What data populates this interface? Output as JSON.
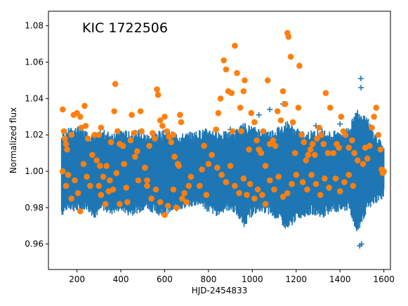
{
  "chart_data": {
    "type": "scatter",
    "title": "KIC 1722506",
    "xlabel": "HJD-2454833",
    "ylabel": "Normalized flux",
    "xlim": [
      70,
      1630
    ],
    "ylim": [
      0.946,
      1.088
    ],
    "xticks": [
      200,
      400,
      600,
      800,
      1000,
      1200,
      1400,
      1600
    ],
    "yticks": [
      0.96,
      0.98,
      1.0,
      1.02,
      1.04,
      1.06,
      1.08
    ],
    "xtick_labels": [
      "200",
      "400",
      "600",
      "800",
      "1000",
      "1200",
      "1400",
      "1600"
    ],
    "ytick_labels": [
      "0.96",
      "0.98",
      "1.00",
      "1.02",
      "1.04",
      "1.06",
      "1.08"
    ],
    "grid": false,
    "colors": {
      "observations": "#1f77b4",
      "flares": "#ff7f0e"
    },
    "series": [
      {
        "marker": "plus",
        "color": "#1f77b4",
        "band_x": [
          130,
          160,
          200,
          240,
          280,
          320,
          360,
          400,
          440,
          480,
          520,
          560,
          600,
          640,
          680,
          720,
          760,
          800,
          840,
          880,
          920,
          960,
          1000,
          1040,
          1080,
          1120,
          1160,
          1200,
          1240,
          1280,
          1320,
          1360,
          1400,
          1440,
          1480,
          1520,
          1560,
          1600
        ],
        "band_low": [
          0.978,
          0.982,
          0.98,
          0.982,
          0.977,
          0.981,
          0.979,
          0.981,
          0.978,
          0.98,
          0.982,
          0.979,
          0.978,
          0.98,
          0.982,
          0.983,
          0.984,
          0.98,
          0.978,
          0.981,
          0.98,
          0.972,
          0.978,
          0.981,
          0.978,
          0.976,
          0.969,
          0.976,
          0.978,
          0.979,
          0.977,
          0.98,
          0.98,
          0.981,
          0.968,
          0.98,
          0.985,
          0.988
        ],
        "band_high": [
          1.018,
          1.021,
          1.022,
          1.02,
          1.018,
          1.02,
          1.019,
          1.021,
          1.019,
          1.02,
          1.018,
          1.019,
          1.02,
          1.019,
          1.018,
          1.019,
          1.02,
          1.021,
          1.02,
          1.019,
          1.02,
          1.024,
          1.022,
          1.021,
          1.02,
          1.022,
          1.025,
          1.021,
          1.019,
          1.02,
          1.021,
          1.019,
          1.02,
          1.022,
          1.032,
          1.028,
          1.018,
          1.012
        ],
        "outliers": [
          [
            1495,
            1.051
          ],
          [
            1496,
            1.046
          ],
          [
            1490,
            0.959
          ],
          [
            1498,
            0.96
          ],
          [
            1030,
            1.031
          ],
          [
            1080,
            1.034
          ],
          [
            1140,
            1.037
          ],
          [
            1400,
            1.026
          ],
          [
            210,
            1.021
          ],
          [
            900,
            1.023
          ],
          [
            1290,
            1.025
          ],
          [
            1520,
            1.028
          ]
        ]
      },
      {
        "marker": "circle",
        "color": "#ff7f0e",
        "points": [
          [
            135,
            1.034
          ],
          [
            140,
            1.022
          ],
          [
            145,
            1.018
          ],
          [
            150,
            1.015
          ],
          [
            155,
            1.012
          ],
          [
            175,
            1.02
          ],
          [
            185,
            1.031
          ],
          [
            200,
            1.032
          ],
          [
            215,
            1.03
          ],
          [
            220,
            1.024
          ],
          [
            235,
            1.036
          ],
          [
            240,
            1.025
          ],
          [
            250,
            1.018
          ],
          [
            135,
            1.0
          ],
          [
            150,
            0.992
          ],
          [
            160,
            0.998
          ],
          [
            175,
            0.985
          ],
          [
            190,
            0.995
          ],
          [
            205,
            0.988
          ],
          [
            215,
            0.978
          ],
          [
            230,
            1.004
          ],
          [
            245,
            0.997
          ],
          [
            260,
            0.992
          ],
          [
            270,
            1.009
          ],
          [
            280,
            1.02
          ],
          [
            290,
            1.006
          ],
          [
            300,
            1.02
          ],
          [
            305,
            1.003
          ],
          [
            310,
            1.024
          ],
          [
            320,
            0.997
          ],
          [
            335,
            1.003
          ],
          [
            345,
            0.989
          ],
          [
            355,
            1.016
          ],
          [
            370,
            1.033
          ],
          [
            375,
            1.048
          ],
          [
            385,
            1.022
          ],
          [
            395,
            1.015
          ],
          [
            300,
            0.992
          ],
          [
            310,
            0.987
          ],
          [
            330,
            0.982
          ],
          [
            350,
            0.995
          ],
          [
            365,
            0.99
          ],
          [
            380,
            0.999
          ],
          [
            395,
            0.982
          ],
          [
            410,
            1.014
          ],
          [
            415,
            1.004
          ],
          [
            425,
            0.991
          ],
          [
            430,
            0.983
          ],
          [
            445,
            1.017
          ],
          [
            450,
            1.031
          ],
          [
            460,
            1.021
          ],
          [
            465,
            1.008
          ],
          [
            475,
            1.011
          ],
          [
            480,
            0.995
          ],
          [
            490,
            1.033
          ],
          [
            495,
            1.022
          ],
          [
            510,
            1.002
          ],
          [
            520,
            0.995
          ],
          [
            530,
            1.014
          ],
          [
            545,
            1.021
          ],
          [
            555,
            1.018
          ],
          [
            565,
            1.045
          ],
          [
            570,
            1.042
          ],
          [
            580,
            1.028
          ],
          [
            590,
            1.025
          ],
          [
            600,
            1.03
          ],
          [
            610,
            1.022
          ],
          [
            620,
            1.019
          ],
          [
            520,
            0.992
          ],
          [
            540,
            0.985
          ],
          [
            560,
            0.99
          ],
          [
            580,
            0.983
          ],
          [
            600,
            0.976
          ],
          [
            615,
            0.981
          ],
          [
            630,
            1.016
          ],
          [
            640,
            1.02
          ],
          [
            645,
            1.008
          ],
          [
            660,
            1.004
          ],
          [
            665,
            1.003
          ],
          [
            670,
            1.031
          ],
          [
            675,
            1.027
          ],
          [
            690,
            0.988
          ],
          [
            700,
            0.983
          ],
          [
            710,
            0.992
          ],
          [
            640,
            0.99
          ],
          [
            655,
            0.98
          ],
          [
            680,
            0.985
          ],
          [
            720,
            0.997
          ],
          [
            760,
            0.992
          ],
          [
            770,
            1.001
          ],
          [
            780,
            1.014
          ],
          [
            790,
            0.987
          ],
          [
            800,
            1.004
          ],
          [
            815,
            1.009
          ],
          [
            835,
            1.023
          ],
          [
            845,
            1.032
          ],
          [
            855,
            1.04
          ],
          [
            870,
            1.061
          ],
          [
            880,
            1.056
          ],
          [
            890,
            1.044
          ],
          [
            905,
            1.043
          ],
          [
            910,
            1.022
          ],
          [
            920,
            1.069
          ],
          [
            930,
            1.054
          ],
          [
            945,
            1.035
          ],
          [
            950,
            1.022
          ],
          [
            840,
            1.002
          ],
          [
            860,
            0.998
          ],
          [
            880,
            0.994
          ],
          [
            900,
            1.003
          ],
          [
            920,
            0.992
          ],
          [
            940,
            0.988
          ],
          [
            960,
            0.996
          ],
          [
            975,
            0.987
          ],
          [
            960,
            1.044
          ],
          [
            965,
            1.05
          ],
          [
            985,
            1.012
          ],
          [
            995,
            1.032
          ],
          [
            1010,
            1.027
          ],
          [
            1020,
            1.017
          ],
          [
            1030,
            1.012
          ],
          [
            1040,
            1.01
          ],
          [
            1050,
            1.022
          ],
          [
            990,
            0.993
          ],
          [
            1010,
            0.985
          ],
          [
            1025,
            0.99
          ],
          [
            1045,
            0.987
          ],
          [
            1060,
            0.982
          ],
          [
            1060,
            1.003
          ],
          [
            1070,
            1.05
          ],
          [
            1080,
            1.015
          ],
          [
            1095,
            1.017
          ],
          [
            1105,
            1.014
          ],
          [
            1115,
            1.033
          ],
          [
            1130,
            1.028
          ],
          [
            1140,
            1.044
          ],
          [
            1150,
            1.037
          ],
          [
            1160,
            1.076
          ],
          [
            1165,
            1.074
          ],
          [
            1175,
            1.063
          ],
          [
            1185,
            1.027
          ],
          [
            1195,
            1.01
          ],
          [
            1210,
            1.035
          ],
          [
            1215,
            1.058
          ],
          [
            1080,
            0.995
          ],
          [
            1100,
            0.99
          ],
          [
            1120,
            0.997
          ],
          [
            1140,
            0.986
          ],
          [
            1160,
            0.988
          ],
          [
            1180,
            0.993
          ],
          [
            1200,
            0.998
          ],
          [
            1225,
            1.02
          ],
          [
            1235,
            1.016
          ],
          [
            1245,
            1.006
          ],
          [
            1255,
            1.009
          ],
          [
            1265,
            1.012
          ],
          [
            1275,
            1.015
          ],
          [
            1285,
            1.009
          ],
          [
            1295,
            1.018
          ],
          [
            1305,
            1.024
          ],
          [
            1315,
            1.02
          ],
          [
            1325,
            1.015
          ],
          [
            1335,
            1.043
          ],
          [
            1345,
            1.01
          ],
          [
            1355,
            1.035
          ],
          [
            1230,
            0.994
          ],
          [
            1250,
            0.99
          ],
          [
            1270,
            0.998
          ],
          [
            1290,
            0.993
          ],
          [
            1310,
            0.987
          ],
          [
            1330,
            0.996
          ],
          [
            1350,
            0.991
          ],
          [
            1370,
            1.01
          ],
          [
            1385,
            1.015
          ],
          [
            1395,
            1.013
          ],
          [
            1405,
            1.03
          ],
          [
            1415,
            1.022
          ],
          [
            1425,
            1.02
          ],
          [
            1440,
            1.013
          ],
          [
            1455,
            1.017
          ],
          [
            1465,
            1.01
          ],
          [
            1480,
            1.006
          ],
          [
            1380,
            0.996
          ],
          [
            1400,
            0.989
          ],
          [
            1420,
            0.994
          ],
          [
            1440,
            0.998
          ],
          [
            1460,
            0.992
          ],
          [
            1505,
            1.004
          ],
          [
            1515,
            1.013
          ],
          [
            1525,
            1.007
          ],
          [
            1535,
            1.014
          ],
          [
            1545,
            1.024
          ],
          [
            1555,
            1.03
          ],
          [
            1565,
            1.035
          ],
          [
            1575,
            1.02
          ],
          [
            1585,
            1.012
          ],
          [
            1590,
            1.001
          ],
          [
            1595,
            0.999
          ],
          [
            1600,
            1.0
          ]
        ]
      }
    ]
  }
}
